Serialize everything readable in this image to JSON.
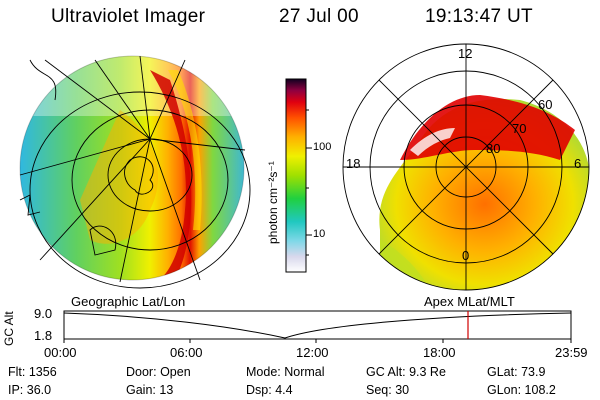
{
  "header": {
    "instrument": "Ultraviolet Imager",
    "date": "27 Jul 00",
    "time": "19:13:47 UT"
  },
  "colorbar": {
    "unit_label": "photon cm⁻²s⁻¹",
    "ticks": [
      "100",
      "10"
    ]
  },
  "polar_plot": {
    "mlt_labels": {
      "top": "12",
      "left": "18",
      "right": "6",
      "bottom": "0"
    },
    "lat_labels": [
      "60",
      "70",
      "80"
    ]
  },
  "panel_labels": {
    "left": "Geographic Lat/Lon",
    "right": "Apex MLat/MLT"
  },
  "altitude_plot": {
    "axis_label": "GC Alt",
    "y_ticks": [
      "9.0",
      "1.8"
    ],
    "x_ticks": [
      "00:00",
      "06:00",
      "12:00",
      "18:00",
      "23:59"
    ],
    "marker_color": "#d00000"
  },
  "status": {
    "row1": [
      {
        "label": "Flt:",
        "value": "1356"
      },
      {
        "label": "Door:",
        "value": "Open"
      },
      {
        "label": "Mode:",
        "value": "Normal"
      },
      {
        "label": "GC Alt:",
        "value": "9.3 Re"
      },
      {
        "label": "GLat:",
        "value": "73.9"
      }
    ],
    "row2": [
      {
        "label": "IP:",
        "value": "36.0"
      },
      {
        "label": "Gain:",
        "value": "13"
      },
      {
        "label": "Dsp:",
        "value": "4.4"
      },
      {
        "label": "Seq:",
        "value": "30"
      },
      {
        "label": "GLon:",
        "value": "108.2"
      }
    ]
  }
}
